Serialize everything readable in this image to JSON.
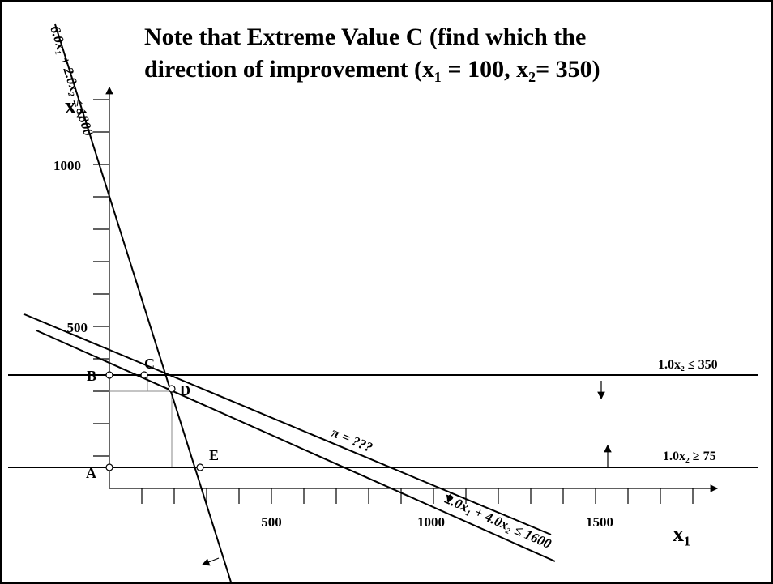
{
  "title": {
    "line1": "Note that Extreme Value C (find which the",
    "line2": "direction of improvement (x₁ = 100, x₂= 350)"
  },
  "axes": {
    "x_label": "x₁",
    "y_label": "x₂",
    "x_ticks": [
      "500",
      "1000",
      "1500"
    ],
    "y_ticks": [
      "1000",
      "500"
    ]
  },
  "constraints": [
    "6.0x₁ + 2.0x₂ ≤ 1800",
    "2.0x₁ + 4.0x₂ ≤ 1600",
    "1.0x₂ ≤ 350",
    "1.0x₂ ≥ 75"
  ],
  "objective": "π = ???",
  "points": [
    "A",
    "B",
    "C",
    "D",
    "E"
  ]
}
